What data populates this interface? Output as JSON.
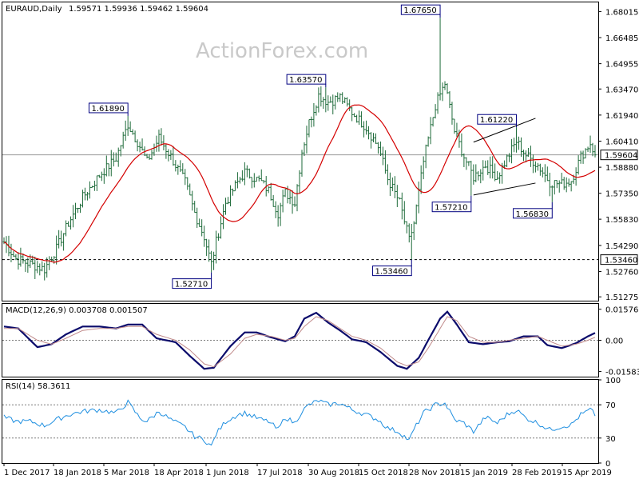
{
  "header": {
    "symbol": "EURAUD,Daily",
    "ohlc": "1.59571 1.59936 1.59462 1.59604",
    "watermark": "ActionForex.com"
  },
  "colors": {
    "background": "#ffffff",
    "candles": "#1e6b3a",
    "moving_average": "#d40000",
    "macd_line": "#0b0b6b",
    "signal_line": "#c08a8a",
    "rsi_line": "#1f8fe0",
    "reference": "#7a7a7a",
    "label_border": "#000080",
    "label_text": "#000080"
  },
  "chart_data": [
    {
      "type": "line",
      "title": "EURAUD,Daily 1.59571 1.59936 1.59462 1.59604",
      "ylim": [
        1.5105,
        1.6855
      ],
      "y_ticks": [
        "1.68015",
        "1.66485",
        "1.64955",
        "1.63470",
        "1.61940",
        "1.60410",
        "1.58880",
        "1.57350",
        "1.55830",
        "1.54290",
        "1.52760",
        "1.51275"
      ],
      "x_ticks": [
        "1 Dec 2017",
        "18 Jan 2018",
        "5 Mar 2018",
        "18 Apr 2018",
        "1 Jun 2018",
        "17 Jul 2018",
        "30 Aug 2018",
        "15 Oct 2018",
        "28 Nov 2018",
        "15 Jan 2019",
        "28 Feb 2019",
        "15 Apr 2019"
      ],
      "current_price": 1.59604,
      "current_price_label": "1.59604",
      "reference_level": 1.5346,
      "reference_level_label": "1.53460",
      "annotations": [
        {
          "label": "1.61890",
          "value": 1.6189,
          "bar": 52
        },
        {
          "label": "1.52710",
          "value": 1.5271,
          "bar": 87
        },
        {
          "label": "1.63570",
          "value": 1.6357,
          "bar": 135
        },
        {
          "label": "1.67650",
          "value": 1.6765,
          "bar": 183
        },
        {
          "label": "1.53460",
          "value": 1.5346,
          "bar": 171
        },
        {
          "label": "1.57210",
          "value": 1.5721,
          "bar": 196
        },
        {
          "label": "1.61220",
          "value": 1.6122,
          "bar": 215
        },
        {
          "label": "1.56830",
          "value": 1.5683,
          "bar": 230
        }
      ],
      "trendlines": [
        {
          "from": {
            "bar": 197,
            "value": 1.6035
          },
          "to": {
            "bar": 223,
            "value": 1.6175
          }
        },
        {
          "from": {
            "bar": 197,
            "value": 1.5725
          },
          "to": {
            "bar": 223,
            "value": 1.5795
          }
        }
      ],
      "bar_count": 249,
      "price_anchors": [
        [
          0,
          1.545
        ],
        [
          5,
          1.535
        ],
        [
          11,
          1.532
        ],
        [
          17,
          1.529
        ],
        [
          22,
          1.541
        ],
        [
          27,
          1.556
        ],
        [
          33,
          1.571
        ],
        [
          40,
          1.584
        ],
        [
          47,
          1.594
        ],
        [
          52,
          1.614
        ],
        [
          57,
          1.601
        ],
        [
          60,
          1.592
        ],
        [
          65,
          1.606
        ],
        [
          70,
          1.595
        ],
        [
          76,
          1.58
        ],
        [
          80,
          1.562
        ],
        [
          84,
          1.548
        ],
        [
          87,
          1.532
        ],
        [
          89,
          1.545
        ],
        [
          93,
          1.568
        ],
        [
          98,
          1.58
        ],
        [
          101,
          1.586
        ],
        [
          108,
          1.58
        ],
        [
          111,
          1.575
        ],
        [
          115,
          1.562
        ],
        [
          118,
          1.574
        ],
        [
          122,
          1.568
        ],
        [
          125,
          1.598
        ],
        [
          128,
          1.615
        ],
        [
          132,
          1.631
        ],
        [
          136,
          1.627
        ],
        [
          141,
          1.63
        ],
        [
          146,
          1.621
        ],
        [
          152,
          1.612
        ],
        [
          157,
          1.601
        ],
        [
          161,
          1.582
        ],
        [
          166,
          1.568
        ],
        [
          170,
          1.546
        ],
        [
          172,
          1.556
        ],
        [
          176,
          1.592
        ],
        [
          181,
          1.625
        ],
        [
          185,
          1.638
        ],
        [
          189,
          1.61
        ],
        [
          193,
          1.595
        ],
        [
          197,
          1.583
        ],
        [
          202,
          1.59
        ],
        [
          207,
          1.583
        ],
        [
          211,
          1.594
        ],
        [
          215,
          1.604
        ],
        [
          219,
          1.596
        ],
        [
          224,
          1.59
        ],
        [
          229,
          1.58
        ],
        [
          234,
          1.579
        ],
        [
          238,
          1.581
        ],
        [
          242,
          1.595
        ],
        [
          246,
          1.603
        ],
        [
          248,
          1.596
        ]
      ],
      "spikes": [
        [
          183,
          1.6765,
          "high"
        ],
        [
          135,
          1.6357,
          "high"
        ],
        [
          52,
          1.6189,
          "high"
        ],
        [
          87,
          1.5271,
          "low"
        ],
        [
          171,
          1.5346,
          "low"
        ],
        [
          196,
          1.5721,
          "low"
        ],
        [
          230,
          1.5683,
          "low"
        ],
        [
          215,
          1.6122,
          "high"
        ]
      ]
    },
    {
      "type": "line",
      "title": "MACD(12,26,9) 0.003708 0.001507",
      "ylim": [
        -0.0185,
        0.0185
      ],
      "y_ticks": [
        "0.015762",
        "0.00",
        "-0.015834"
      ],
      "series": [
        {
          "name": "MACD",
          "anchors": [
            [
              0,
              0.007
            ],
            [
              6,
              0.006
            ],
            [
              14,
              -0.0035
            ],
            [
              20,
              -0.002
            ],
            [
              26,
              0.003
            ],
            [
              33,
              0.007
            ],
            [
              40,
              0.007
            ],
            [
              47,
              0.006
            ],
            [
              52,
              0.008
            ],
            [
              58,
              0.008
            ],
            [
              64,
              0.001
            ],
            [
              72,
              -0.001
            ],
            [
              78,
              -0.008
            ],
            [
              84,
              -0.0145
            ],
            [
              88,
              -0.014
            ],
            [
              95,
              -0.003
            ],
            [
              101,
              0.004
            ],
            [
              106,
              0.004
            ],
            [
              112,
              0.0015
            ],
            [
              118,
              -0.0005
            ],
            [
              122,
              0.002
            ],
            [
              126,
              0.011
            ],
            [
              131,
              0.014
            ],
            [
              136,
              0.009
            ],
            [
              141,
              0.005
            ],
            [
              146,
              0.0005
            ],
            [
              152,
              -0.001
            ],
            [
              158,
              -0.006
            ],
            [
              165,
              -0.013
            ],
            [
              169,
              -0.0145
            ],
            [
              174,
              -0.009
            ],
            [
              178,
              0.0
            ],
            [
              183,
              0.011
            ],
            [
              186,
              0.0145
            ],
            [
              190,
              0.008
            ],
            [
              195,
              -0.001
            ],
            [
              201,
              -0.002
            ],
            [
              207,
              -0.001
            ],
            [
              212,
              -0.0005
            ],
            [
              218,
              0.002
            ],
            [
              224,
              0.002
            ],
            [
              228,
              -0.0025
            ],
            [
              234,
              -0.004
            ],
            [
              240,
              -0.0015
            ],
            [
              245,
              0.002
            ],
            [
              248,
              0.0037
            ]
          ]
        },
        {
          "name": "Signal",
          "anchors": [
            [
              0,
              0.006
            ],
            [
              6,
              0.006
            ],
            [
              14,
              0.0
            ],
            [
              20,
              -0.002
            ],
            [
              26,
              0.001
            ],
            [
              33,
              0.005
            ],
            [
              40,
              0.006
            ],
            [
              47,
              0.006
            ],
            [
              52,
              0.007
            ],
            [
              58,
              0.007
            ],
            [
              64,
              0.003
            ],
            [
              72,
              0.0
            ],
            [
              78,
              -0.005
            ],
            [
              84,
              -0.012
            ],
            [
              88,
              -0.0135
            ],
            [
              95,
              -0.007
            ],
            [
              101,
              0.001
            ],
            [
              106,
              0.003
            ],
            [
              112,
              0.002
            ],
            [
              118,
              0.0
            ],
            [
              122,
              0.001
            ],
            [
              126,
              0.007
            ],
            [
              131,
              0.012
            ],
            [
              136,
              0.01
            ],
            [
              141,
              0.006
            ],
            [
              146,
              0.002
            ],
            [
              152,
              0.0
            ],
            [
              158,
              -0.004
            ],
            [
              165,
              -0.011
            ],
            [
              169,
              -0.013
            ],
            [
              174,
              -0.011
            ],
            [
              178,
              -0.004
            ],
            [
              183,
              0.006
            ],
            [
              186,
              0.012
            ],
            [
              190,
              0.01
            ],
            [
              195,
              0.002
            ],
            [
              201,
              -0.001
            ],
            [
              207,
              -0.001
            ],
            [
              212,
              0.0
            ],
            [
              218,
              0.001
            ],
            [
              224,
              0.002
            ],
            [
              228,
              0.0
            ],
            [
              234,
              -0.003
            ],
            [
              240,
              -0.002
            ],
            [
              245,
              0.0
            ],
            [
              248,
              0.0015
            ]
          ]
        }
      ]
    },
    {
      "type": "line",
      "title": "RSI(14) 58.3611",
      "ylim": [
        0,
        100
      ],
      "y_ticks": [
        "100",
        "70",
        "30",
        "0"
      ],
      "levels": [
        70,
        30
      ],
      "series": [
        {
          "name": "RSI",
          "anchors": [
            [
              0,
              55
            ],
            [
              5,
              50
            ],
            [
              11,
              50
            ],
            [
              17,
              45
            ],
            [
              22,
              52
            ],
            [
              27,
              58
            ],
            [
              33,
              62
            ],
            [
              40,
              64
            ],
            [
              47,
              60
            ],
            [
              52,
              73
            ],
            [
              57,
              54
            ],
            [
              60,
              50
            ],
            [
              65,
              62
            ],
            [
              70,
              52
            ],
            [
              76,
              43
            ],
            [
              80,
              32
            ],
            [
              84,
              28
            ],
            [
              87,
              20
            ],
            [
              89,
              35
            ],
            [
              93,
              50
            ],
            [
              98,
              58
            ],
            [
              101,
              60
            ],
            [
              108,
              52
            ],
            [
              111,
              50
            ],
            [
              115,
              40
            ],
            [
              118,
              55
            ],
            [
              122,
              48
            ],
            [
              125,
              62
            ],
            [
              128,
              70
            ],
            [
              132,
              75
            ],
            [
              136,
              70
            ],
            [
              141,
              72
            ],
            [
              146,
              64
            ],
            [
              152,
              58
            ],
            [
              157,
              52
            ],
            [
              161,
              42
            ],
            [
              166,
              37
            ],
            [
              170,
              27
            ],
            [
              172,
              40
            ],
            [
              176,
              60
            ],
            [
              181,
              70
            ],
            [
              185,
              72
            ],
            [
              189,
              52
            ],
            [
              193,
              48
            ],
            [
              197,
              38
            ],
            [
              202,
              55
            ],
            [
              207,
              48
            ],
            [
              211,
              58
            ],
            [
              215,
              64
            ],
            [
              219,
              54
            ],
            [
              224,
              48
            ],
            [
              229,
              40
            ],
            [
              234,
              44
            ],
            [
              238,
              46
            ],
            [
              242,
              58
            ],
            [
              246,
              64
            ],
            [
              248,
              58
            ]
          ]
        }
      ]
    }
  ]
}
